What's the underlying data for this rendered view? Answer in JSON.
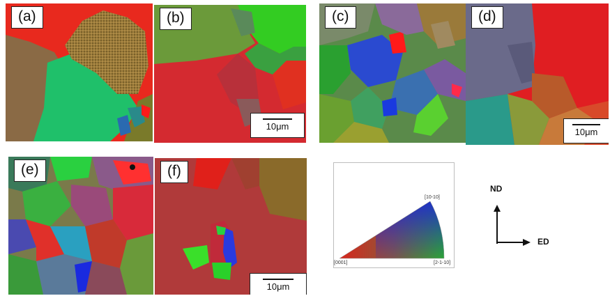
{
  "panels": [
    {
      "id": "a",
      "label": "(a)"
    },
    {
      "id": "b",
      "label": "(b)",
      "scale_bar": "10μm"
    },
    {
      "id": "c",
      "label": "(c)"
    },
    {
      "id": "d",
      "label": "(d)",
      "scale_bar": "10μm"
    },
    {
      "id": "e",
      "label": "(e)"
    },
    {
      "id": "f",
      "label": "(f)",
      "scale_bar": "10μm"
    }
  ],
  "ipf_legend": {
    "corner_labels": [
      "[0001]",
      "[10-10]",
      "[2-1-10]"
    ],
    "colors": {
      "0001": "#e0201a",
      "10-10": "#1a20e0",
      "2-1-10": "#1ac81a"
    }
  },
  "axes": {
    "vertical": "ND",
    "horizontal": "ED"
  }
}
